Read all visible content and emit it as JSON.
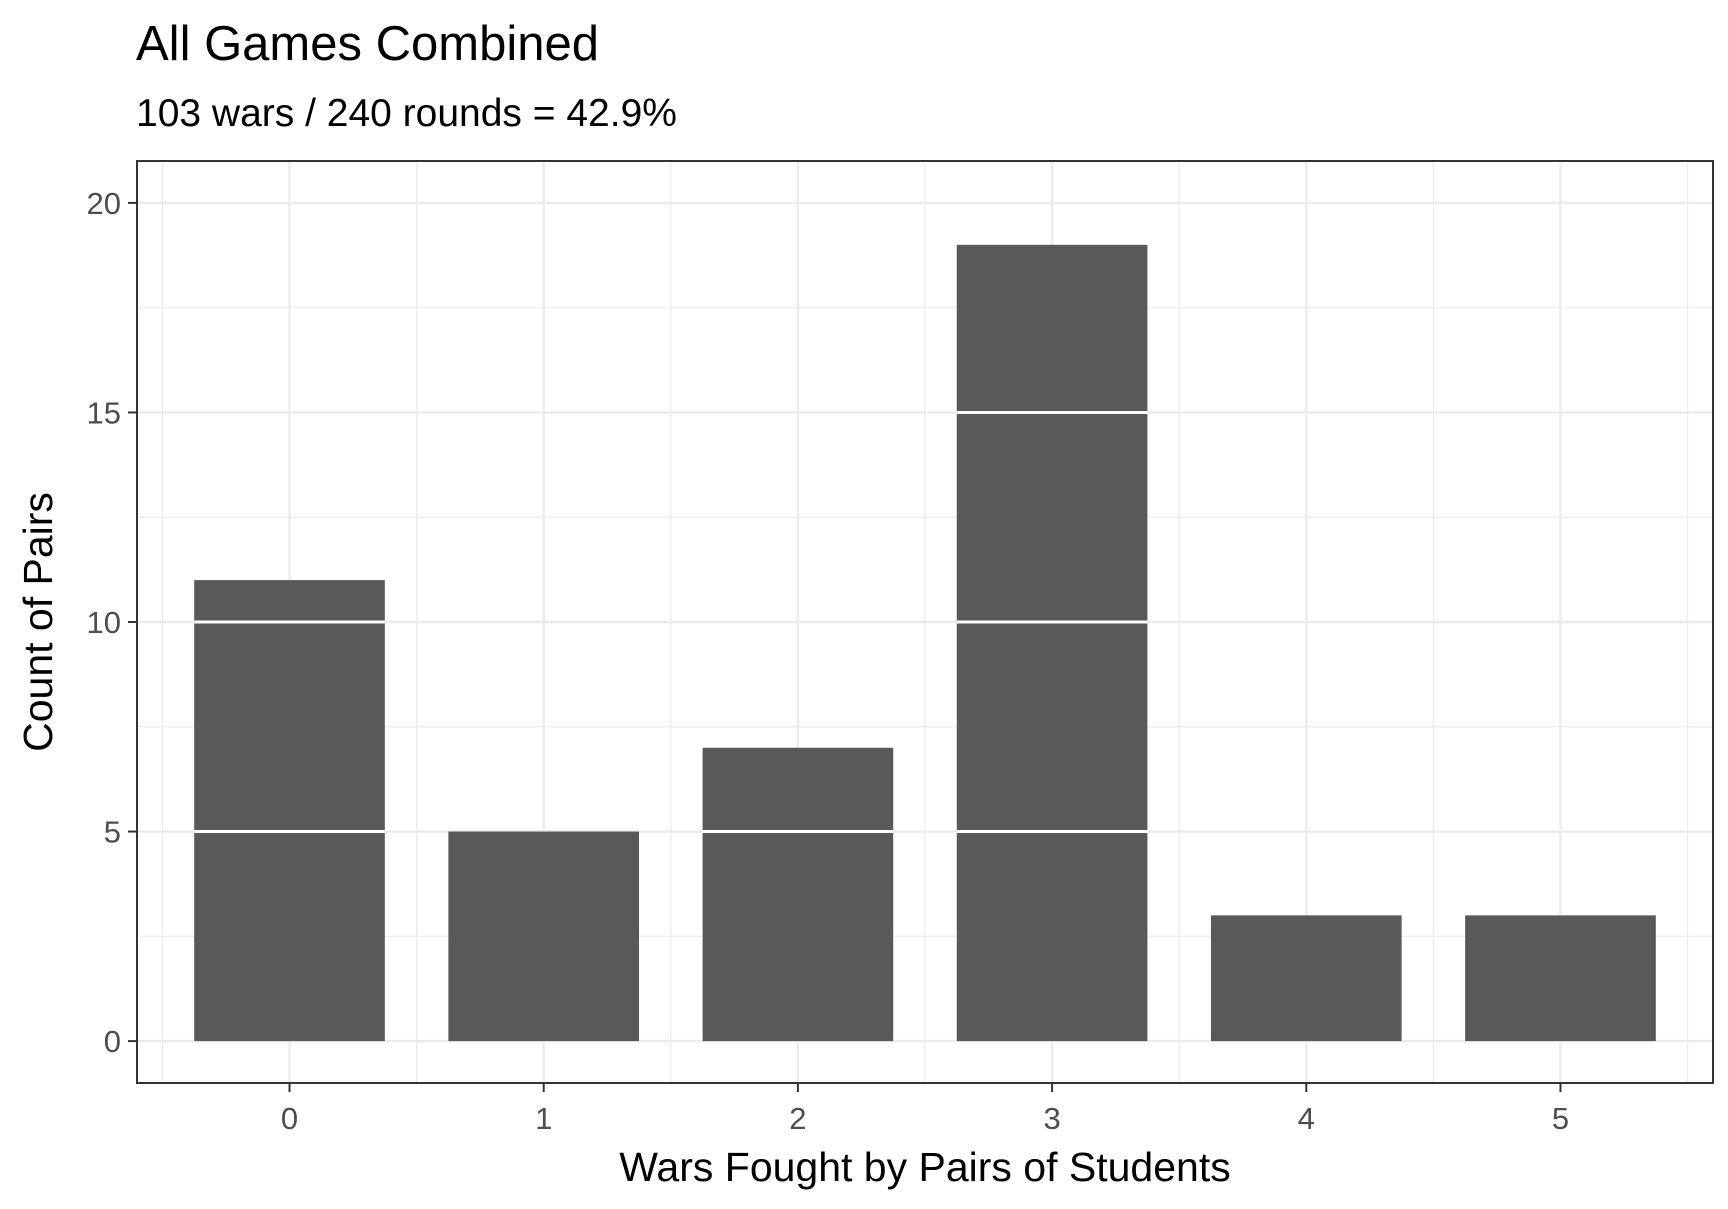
{
  "chart_data": {
    "type": "bar",
    "title": "All Games Combined",
    "subtitle": "103 wars / 240 rounds = 42.9%",
    "xlabel": "Wars Fought by Pairs of Students",
    "ylabel": "Count of Pairs",
    "categories": [
      "0",
      "1",
      "2",
      "3",
      "4",
      "5"
    ],
    "values": [
      11,
      5,
      7,
      19,
      3,
      3
    ],
    "segment_size": 5,
    "ylim": [
      -1,
      21
    ],
    "yticks": [
      "0",
      "5",
      "10",
      "15",
      "20"
    ],
    "grid": true,
    "bar_color": "#595959",
    "segment_line_color": "#ffffff",
    "legend": "none"
  }
}
